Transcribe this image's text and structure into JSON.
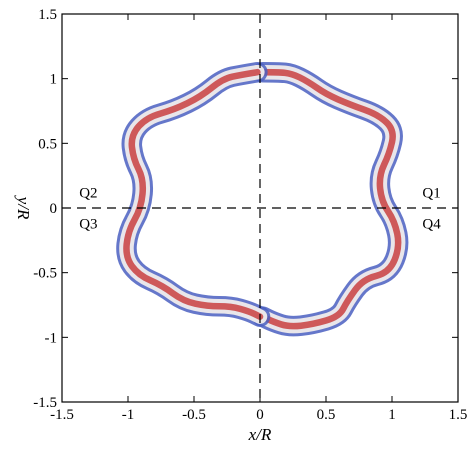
{
  "chart_data": {
    "type": "contour",
    "title": "",
    "xlabel": "x/R",
    "ylabel": "y/R",
    "xlim": [
      -1.5,
      1.5
    ],
    "ylim": [
      -1.5,
      1.5
    ],
    "xticks": [
      "-1.5",
      "-1",
      "-0.5",
      "0",
      "0.5",
      "1",
      "1.5"
    ],
    "yticks": [
      "-1.5",
      "-1",
      "-0.5",
      "0",
      "0.5",
      "1",
      "1.5"
    ],
    "reference_lines": [
      {
        "orientation": "vertical",
        "x": 0,
        "style": "dashed"
      },
      {
        "orientation": "horizontal",
        "y": 0,
        "style": "dashed"
      }
    ],
    "quadrant_labels": [
      {
        "text": "Q1",
        "x": 1.3,
        "y": 0.12
      },
      {
        "text": "Q4",
        "x": 1.3,
        "y": -0.12
      },
      {
        "text": "Q2",
        "x": -1.3,
        "y": 0.12
      },
      {
        "text": "Q3",
        "x": -1.3,
        "y": -0.12
      }
    ],
    "ring": {
      "description_colors": {
        "low": "#4a5fc1",
        "mid": "#f0f0f0",
        "high": "#c42a2a"
      },
      "right_half": [
        [
          0.02,
          1.05
        ],
        [
          0.14,
          1.05
        ],
        [
          0.24,
          1.04
        ],
        [
          0.36,
          0.98
        ],
        [
          0.5,
          0.88
        ],
        [
          0.68,
          0.8
        ],
        [
          0.9,
          0.72
        ],
        [
          1.02,
          0.6
        ],
        [
          0.98,
          0.42
        ],
        [
          0.9,
          0.25
        ],
        [
          0.92,
          0.05
        ],
        [
          1.02,
          -0.1
        ],
        [
          1.06,
          -0.3
        ],
        [
          0.98,
          -0.5
        ],
        [
          0.78,
          -0.55
        ],
        [
          0.66,
          -0.72
        ],
        [
          0.6,
          -0.84
        ],
        [
          0.4,
          -0.9
        ],
        [
          0.22,
          -0.92
        ],
        [
          0.1,
          -0.88
        ],
        [
          0.02,
          -0.84
        ]
      ],
      "left_half": [
        [
          -0.02,
          1.05
        ],
        [
          -0.14,
          1.03
        ],
        [
          -0.28,
          1.0
        ],
        [
          -0.45,
          0.86
        ],
        [
          -0.65,
          0.76
        ],
        [
          -0.86,
          0.7
        ],
        [
          -0.98,
          0.56
        ],
        [
          -0.96,
          0.38
        ],
        [
          -0.88,
          0.22
        ],
        [
          -0.9,
          0.0
        ],
        [
          -1.0,
          -0.18
        ],
        [
          -1.02,
          -0.38
        ],
        [
          -0.92,
          -0.52
        ],
        [
          -0.74,
          -0.6
        ],
        [
          -0.58,
          -0.72
        ],
        [
          -0.4,
          -0.76
        ],
        [
          -0.22,
          -0.76
        ],
        [
          -0.08,
          -0.8
        ],
        [
          0.0,
          -0.84
        ]
      ],
      "thickness": 0.11
    }
  }
}
